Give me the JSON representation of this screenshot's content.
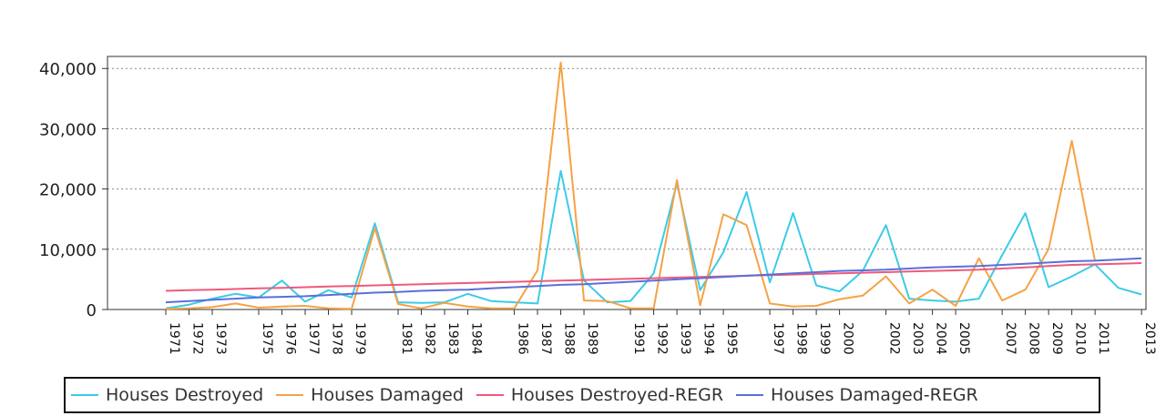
{
  "chart_data": {
    "type": "line",
    "title": "",
    "xlabel": "",
    "ylabel": "",
    "ylim": [
      0,
      42000
    ],
    "yticks": [
      0,
      10000,
      20000,
      30000,
      40000
    ],
    "ytick_labels": [
      "0",
      "10,000",
      "20,000",
      "30,000",
      "40,000"
    ],
    "grid": true,
    "legend_position": "bottom",
    "x": [
      1971,
      1972,
      1973,
      1974,
      1975,
      1976,
      1977,
      1978,
      1979,
      1980,
      1981,
      1982,
      1983,
      1984,
      1985,
      1986,
      1987,
      1988,
      1989,
      1990,
      1991,
      1992,
      1993,
      1994,
      1995,
      1996,
      1997,
      1998,
      1999,
      2000,
      2001,
      2002,
      2003,
      2004,
      2005,
      2006,
      2007,
      2008,
      2009,
      2010,
      2011,
      2012,
      2013
    ],
    "x_tick_labels": [
      "1971",
      "1972",
      "1973",
      "1975",
      "1976",
      "1977",
      "1978",
      "1979",
      "1981",
      "1982",
      "1983",
      "1984",
      "1986",
      "1987",
      "1988",
      "1989",
      "1991",
      "1992",
      "1993",
      "1994",
      "1995",
      "1997",
      "1998",
      "1999",
      "2000",
      "2002",
      "2003",
      "2004",
      "2005",
      "2007",
      "2008",
      "2009",
      "2010",
      "2011",
      "2013"
    ],
    "series": [
      {
        "name": "Houses Destroyed",
        "color": "#3ccbe8",
        "values": [
          200,
          800,
          1800,
          2600,
          2000,
          4800,
          1300,
          3200,
          2000,
          14300,
          1200,
          1100,
          1200,
          2600,
          1400,
          1200,
          1000,
          23000,
          4800,
          1200,
          1400,
          6000,
          21000,
          3200,
          9500,
          19500,
          4500,
          16000,
          4000,
          3000,
          6400,
          14000,
          1800,
          1500,
          1300,
          1800,
          9000,
          16000,
          3700,
          5500,
          7500,
          3600,
          2500
        ]
      },
      {
        "name": "Houses Damaged",
        "color": "#f5a245",
        "values": [
          100,
          200,
          400,
          1000,
          300,
          500,
          600,
          200,
          100,
          13500,
          900,
          200,
          1100,
          500,
          200,
          200,
          6500,
          41000,
          1500,
          1400,
          200,
          200,
          21500,
          700,
          15800,
          14000,
          1000,
          500,
          600,
          1700,
          2300,
          5500,
          1000,
          3300,
          600,
          8500,
          1500,
          3300,
          10000,
          28000,
          8000,
          null,
          null
        ]
      },
      {
        "name": "Houses Destroyed-REGR",
        "color": "#ee5a7c",
        "values": [
          3100,
          3200,
          3300,
          3400,
          3500,
          3600,
          3700,
          3800,
          3900,
          4000,
          4100,
          4200,
          4300,
          4400,
          4500,
          4600,
          4700,
          4800,
          4900,
          5000,
          5100,
          5200,
          5300,
          5400,
          5500,
          5600,
          5700,
          5800,
          5900,
          6000,
          6100,
          6200,
          6300,
          6400,
          6500,
          6600,
          6800,
          7000,
          7200,
          7400,
          7500,
          7600,
          7700
        ]
      },
      {
        "name": "Houses Damaged-REGR",
        "color": "#5b6fd8",
        "values": [
          1200,
          1400,
          1600,
          1800,
          2000,
          2100,
          2200,
          2400,
          2600,
          2800,
          2900,
          3100,
          3200,
          3300,
          3500,
          3700,
          3900,
          4100,
          4200,
          4400,
          4600,
          4800,
          5000,
          5200,
          5400,
          5600,
          5800,
          6000,
          6200,
          6400,
          6500,
          6600,
          6800,
          7000,
          7100,
          7200,
          7400,
          7600,
          7800,
          8000,
          8100,
          8300,
          8500
        ]
      }
    ]
  }
}
